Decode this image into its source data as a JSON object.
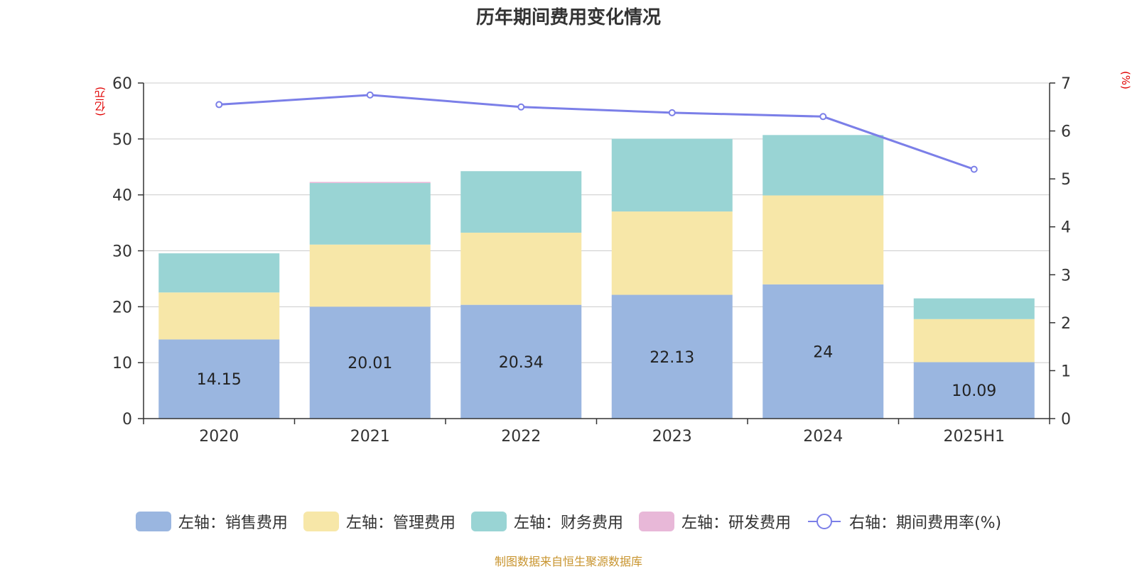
{
  "title": "历年期间费用变化情况",
  "left_unit": "(亿元)",
  "right_unit": "(%)",
  "source": "制图数据来自恒生聚源数据库",
  "legend": [
    {
      "label": "左轴：销售费用",
      "color": "#9ab6e0"
    },
    {
      "label": "左轴：管理费用",
      "color": "#f7e7a8"
    },
    {
      "label": "左轴：财务费用",
      "color": "#99d4d4"
    },
    {
      "label": "左轴：研发费用",
      "color": "#e8b8d8"
    },
    {
      "label": "右轴：期间费用率(%)",
      "color": "#7b7fe8"
    }
  ],
  "chart_data": {
    "type": "bar",
    "stacked": true,
    "categories": [
      "2020",
      "2021",
      "2022",
      "2023",
      "2024",
      "2025H1"
    ],
    "series": [
      {
        "name": "左轴：销售费用",
        "axis": "left",
        "color": "#9ab6e0",
        "values": [
          14.15,
          20.01,
          20.34,
          22.13,
          24,
          10.09
        ],
        "show_labels": true
      },
      {
        "name": "左轴：管理费用",
        "axis": "left",
        "color": "#f7e7a8",
        "values": [
          8.4,
          11.1,
          12.9,
          14.9,
          15.9,
          7.7
        ]
      },
      {
        "name": "左轴：财务费用",
        "axis": "left",
        "color": "#99d4d4",
        "values": [
          7.0,
          11.0,
          11.0,
          13.0,
          10.8,
          3.7
        ]
      },
      {
        "name": "左轴：研发费用",
        "axis": "left",
        "color": "#e8b8d8",
        "values": [
          0,
          0.2,
          0,
          0,
          0,
          0
        ]
      },
      {
        "name": "右轴：期间费用率(%)",
        "axis": "right",
        "type": "line",
        "color": "#7b7fe8",
        "values": [
          6.55,
          6.75,
          6.5,
          6.38,
          6.3,
          5.2
        ]
      }
    ],
    "y_left": {
      "min": 0,
      "max": 60,
      "ticks": [
        0,
        10,
        20,
        30,
        40,
        50,
        60
      ]
    },
    "y_right": {
      "min": 0,
      "max": 7,
      "ticks": [
        0,
        1,
        2,
        3,
        4,
        5,
        6,
        7
      ]
    },
    "grid": true,
    "legend_position": "bottom"
  }
}
